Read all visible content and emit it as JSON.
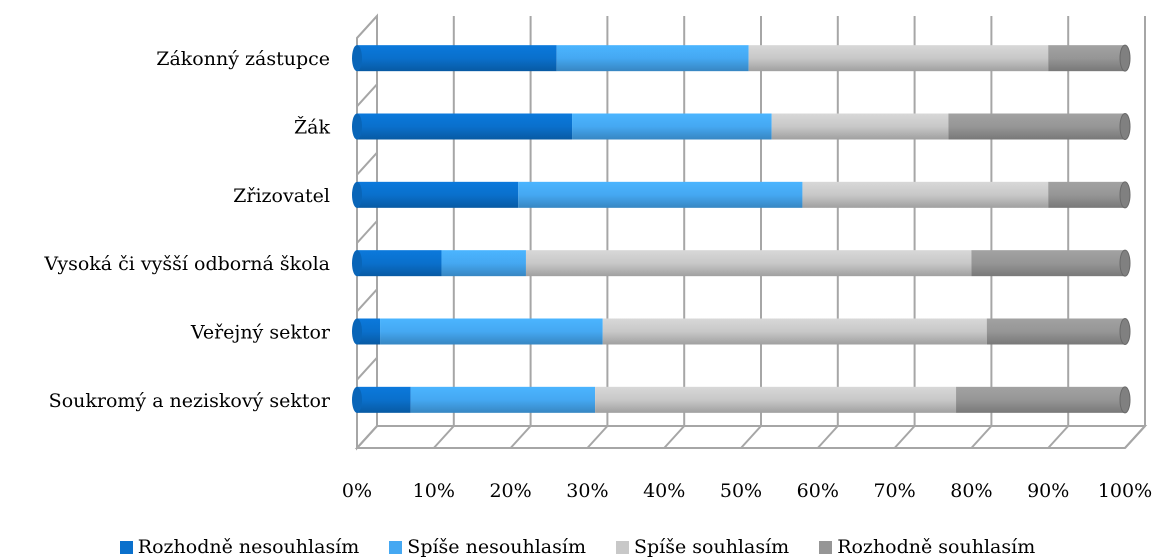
{
  "chart_data": {
    "type": "bar",
    "orientation": "horizontal",
    "stacked": "percent",
    "categories": [
      "Zákonný zástupce",
      "Žák",
      "Zřizovatel",
      "Vysoká či vyšší odborná škola",
      "Veřejný sektor",
      "Soukromý a neziskový sektor"
    ],
    "series": [
      {
        "name": "Rozhodně nesouhlasím",
        "color": "#0a70cc",
        "values": [
          26,
          28,
          21,
          11,
          3,
          7
        ]
      },
      {
        "name": "Spíše nesouhlasím",
        "color": "#45a8f2",
        "values": [
          25,
          26,
          37,
          11,
          29,
          24
        ]
      },
      {
        "name": "Spíše souhlasím",
        "color": "#c8c8c8",
        "values": [
          39,
          23,
          32,
          58,
          50,
          47
        ]
      },
      {
        "name": "Rozhodně souhlasím",
        "color": "#969696",
        "values": [
          10,
          23,
          10,
          20,
          18,
          22
        ]
      }
    ],
    "x_ticks": [
      "0%",
      "10%",
      "20%",
      "30%",
      "40%",
      "50%",
      "60%",
      "70%",
      "80%",
      "90%",
      "100%"
    ],
    "xlim": [
      0,
      100
    ],
    "grid": true,
    "legend_position": "bottom",
    "style": "3d"
  }
}
